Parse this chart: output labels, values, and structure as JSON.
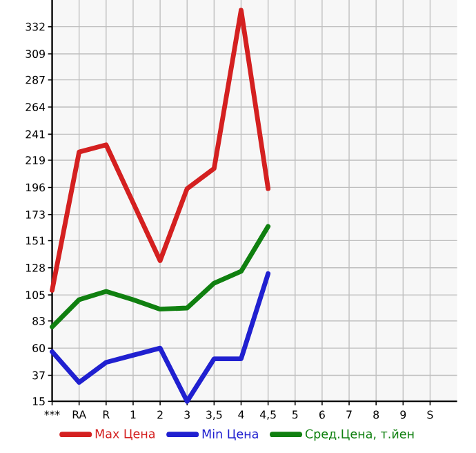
{
  "chart_data": {
    "type": "line",
    "categories": [
      "***",
      "RA",
      "R",
      "1",
      "2",
      "3",
      "3,5",
      "4",
      "4,5",
      "5",
      "6",
      "7",
      "8",
      "9",
      "S"
    ],
    "series": [
      {
        "name": "Max Цена",
        "color": "#d42020",
        "values": [
          109,
          226,
          232,
          183,
          134,
          195,
          212,
          346,
          195,
          null,
          null,
          null,
          null,
          null,
          null
        ]
      },
      {
        "name": "Min Цена",
        "color": "#2020d0",
        "values": [
          57,
          31,
          48,
          54,
          60,
          15,
          51,
          51,
          123,
          null,
          null,
          null,
          null,
          null,
          null
        ]
      },
      {
        "name": "Сред.Цена, т.йен",
        "color": "#108010",
        "values": [
          78,
          101,
          108,
          101,
          93,
          94,
          115,
          125,
          163,
          null,
          null,
          null,
          null,
          null,
          null
        ]
      }
    ],
    "ylim": [
      15,
      354.6
    ],
    "yticks": [
      15,
      37,
      60,
      83,
      105,
      128,
      151,
      173,
      196,
      219,
      241,
      264,
      287,
      309,
      332
    ],
    "grid": true,
    "legend": "bottom",
    "line_style": "solid"
  }
}
